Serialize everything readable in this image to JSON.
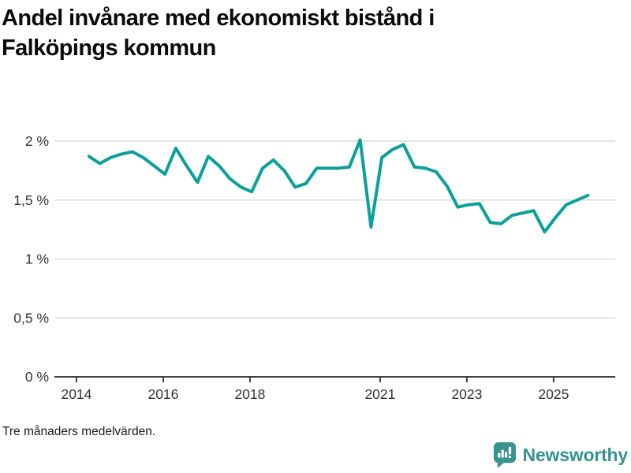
{
  "page": {
    "title_line1": "Andel invånare med ekonomiskt bistånd i",
    "title_line2": "Falköpings kommun",
    "footnote": "Tre månaders medelvärden."
  },
  "brand": {
    "name": "Newsworthy",
    "icon": "bar-chart-speech-bubble-icon",
    "color_text": "#339390",
    "color_icon": "#3A948E"
  },
  "chart_data": {
    "type": "line",
    "title": "Andel invånare med ekonomiskt bistånd i Falköpings kommun",
    "note": "Tre månaders medelvärden.",
    "unit": "%",
    "grid": true,
    "legend": "none",
    "xlim": [
      2013.51,
      2026.42
    ],
    "ylim": [
      0,
      2.26
    ],
    "x_ticks": [
      2014,
      2016,
      2018,
      2021,
      2023,
      2025
    ],
    "y_ticks": [
      {
        "value": 0,
        "label": "0 %"
      },
      {
        "value": 0.5,
        "label": "0,5 %"
      },
      {
        "value": 1,
        "label": "1 %"
      },
      {
        "value": 1.5,
        "label": "1,5 %"
      },
      {
        "value": 2,
        "label": "2 %"
      }
    ],
    "series": [
      {
        "name": "Andel invånare med ekonomiskt bistånd (tre månaders medelvärden)",
        "color": "#0AA298",
        "x_start_year": 2014.29,
        "x_step_years": 0.25,
        "values": [
          1.87,
          1.81,
          1.86,
          1.89,
          1.91,
          1.86,
          1.79,
          1.72,
          1.94,
          1.79,
          1.65,
          1.87,
          1.79,
          1.68,
          1.61,
          1.57,
          1.77,
          1.84,
          1.75,
          1.61,
          1.64,
          1.77,
          1.77,
          1.77,
          1.78,
          2.01,
          1.27,
          1.86,
          1.93,
          1.97,
          1.78,
          1.77,
          1.74,
          1.62,
          1.44,
          1.46,
          1.47,
          1.31,
          1.3,
          1.37,
          1.39,
          1.41,
          1.23,
          1.35,
          1.46,
          1.5,
          1.54
        ]
      }
    ],
    "style": {
      "gridline_color": "#DCDCDC",
      "axis_color": "#3F3F3F",
      "tick_label_color": "#333333",
      "line_width": 4
    }
  }
}
